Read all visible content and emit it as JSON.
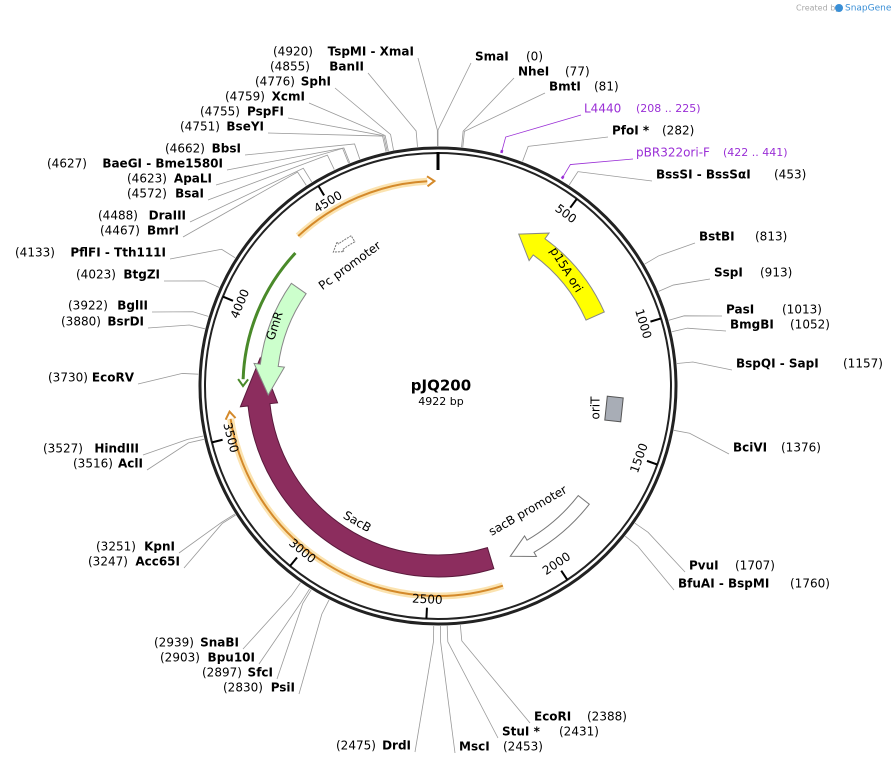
{
  "header": {
    "credit": "Created by",
    "brand": "SnapGene"
  },
  "plasmid": {
    "name": "pJQ200",
    "length": "4922 bp"
  },
  "sites": [
    {
      "label": "SmaI",
      "position": "(0)"
    },
    {
      "label": "NheI",
      "position": "(77)"
    },
    {
      "label": "BmtI",
      "position": "(81)"
    },
    {
      "label": "PfoI *",
      "position": "(282)"
    },
    {
      "label": "BssSI - BssSαI",
      "position": "(453)"
    },
    {
      "label": "BstBI",
      "position": "(813)"
    },
    {
      "label": "SspI",
      "position": "(913)"
    },
    {
      "label": "PasI",
      "position": "(1013)"
    },
    {
      "label": "BmgBI",
      "position": "(1052)"
    },
    {
      "label": "BspQI - SapI",
      "position": "(1157)"
    },
    {
      "label": "BciVI",
      "position": "(1376)"
    },
    {
      "label": "PvuI",
      "position": "(1707)"
    },
    {
      "label": "BfuAI - BspMI",
      "position": "(1760)"
    },
    {
      "label": "EcoRI",
      "position": "(2388)"
    },
    {
      "label": "StuI *",
      "position": "(2431)"
    },
    {
      "label": "MscI",
      "position": "(2453)"
    },
    {
      "label": "DrdI",
      "position": "(2475)"
    },
    {
      "label": "PsiI",
      "position": "(2830)"
    },
    {
      "label": "SfcI",
      "position": "(2897)"
    },
    {
      "label": "Bpu10I",
      "position": "(2903)"
    },
    {
      "label": "SnaBI",
      "position": "(2939)"
    },
    {
      "label": "Acc65I",
      "position": "(3247)"
    },
    {
      "label": "KpnI",
      "position": "(3251)"
    },
    {
      "label": "AclI",
      "position": "(3516)"
    },
    {
      "label": "HindIII",
      "position": "(3527)"
    },
    {
      "label": "EcoRV",
      "position": "(3730)"
    },
    {
      "label": "BsrDI",
      "position": "(3880)"
    },
    {
      "label": "BglII",
      "position": "(3922)"
    },
    {
      "label": "BtgZI",
      "position": "(4023)"
    },
    {
      "label": "PflFI - Tth111I",
      "position": "(4133)"
    },
    {
      "label": "BmrI",
      "position": "(4467)"
    },
    {
      "label": "DraIII",
      "position": "(4488)"
    },
    {
      "label": "BsaI",
      "position": "(4572)"
    },
    {
      "label": "ApaLI",
      "position": "(4623)"
    },
    {
      "label": "BaeGI - Bme1580I",
      "position": "(4627)"
    },
    {
      "label": "BbsI",
      "position": "(4662)"
    },
    {
      "label": "BseYI",
      "position": "(4751)"
    },
    {
      "label": "PspFI",
      "position": "(4755)"
    },
    {
      "label": "XcmI",
      "position": "(4759)"
    },
    {
      "label": "SphI",
      "position": "(4776)"
    },
    {
      "label": "BanII",
      "position": "(4855)"
    },
    {
      "label": "TspMI - XmaI",
      "position": "(4920)"
    }
  ],
  "primers": [
    {
      "name": "L4440",
      "range": "(208 .. 225)"
    },
    {
      "name": "pBR322ori-F",
      "range": "(422 .. 441)"
    }
  ],
  "features": [
    {
      "label": "p15A ori"
    },
    {
      "label": "oriT"
    },
    {
      "label": "SacB"
    },
    {
      "label": "sacB promoter"
    },
    {
      "label": "GmR"
    },
    {
      "label": "Pc promoter"
    }
  ],
  "ruler": [
    "500",
    "1000",
    "1500",
    "2000",
    "2500",
    "3000",
    "3500",
    "4000",
    "4500"
  ]
}
